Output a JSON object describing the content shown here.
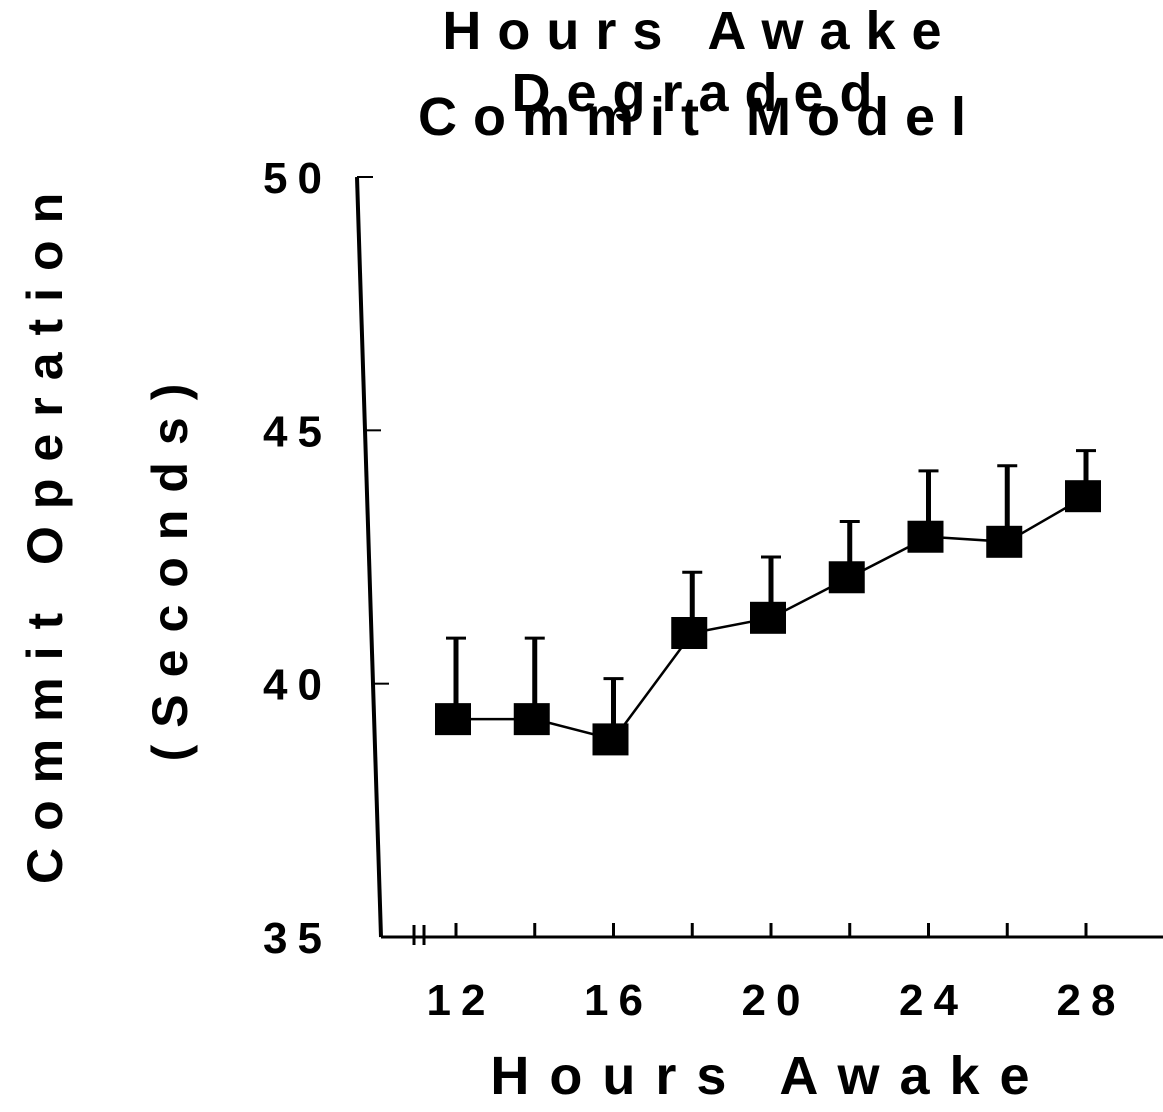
{
  "chart_data": {
    "type": "line",
    "title": [
      "Hours Awake Degraded",
      "Commit Model"
    ],
    "xlabel": "Hours Awake",
    "ylabel": [
      "Commit Operation",
      "(Seconds)"
    ],
    "x": [
      12,
      14,
      16,
      18,
      20,
      22,
      24,
      26,
      28
    ],
    "xticks": [
      12,
      14,
      16,
      18,
      20,
      22,
      24,
      26,
      28
    ],
    "xtick_labels": [
      "12",
      "16",
      "20",
      "24",
      "28"
    ],
    "xtick_label_values": [
      12,
      16,
      20,
      24,
      28
    ],
    "yticks": [
      35,
      40,
      45,
      50
    ],
    "ytick_labels": [
      "35",
      "40",
      "45",
      "50"
    ],
    "ylim": [
      35,
      50
    ],
    "xlim": [
      10.8,
      30
    ],
    "axis_break": true,
    "grid": false,
    "legend": "none",
    "series": [
      {
        "values": [
          39.3,
          39.3,
          38.9,
          41.0,
          41.3,
          42.1,
          42.9,
          42.8,
          43.7
        ],
        "error_upper": [
          40.9,
          40.9,
          40.1,
          42.2,
          42.5,
          43.2,
          44.2,
          44.3,
          44.6
        ],
        "marker": "square",
        "color": "#000000"
      }
    ]
  }
}
